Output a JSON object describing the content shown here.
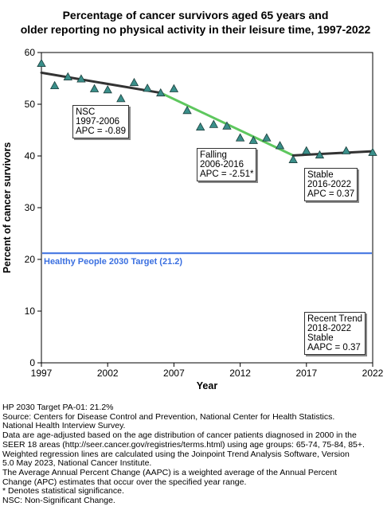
{
  "chart_data": {
    "type": "scatter",
    "title_line1": "Percentage of cancer survivors aged 65 years and",
    "title_line2": "older reporting no physical activity in their leisure time, 1997-2022",
    "xlabel": "Year",
    "ylabel": "Percent of cancer survivors",
    "xlim": [
      1997,
      2022
    ],
    "ylim": [
      0,
      60
    ],
    "x_ticks": [
      1997,
      2002,
      2007,
      2012,
      2017,
      2022
    ],
    "y_ticks": [
      0,
      10,
      20,
      30,
      40,
      50,
      60
    ],
    "grid": false,
    "points": {
      "x": [
        1997,
        1998,
        1999,
        2000,
        2001,
        2002,
        2003,
        2004,
        2005,
        2006,
        2007,
        2008,
        2009,
        2010,
        2011,
        2012,
        2013,
        2014,
        2015,
        2016,
        2017,
        2018,
        2020,
        2022
      ],
      "y": [
        57.9,
        53.6,
        55.3,
        54.9,
        53.0,
        52.8,
        51.1,
        54.2,
        53.1,
        52.2,
        53.0,
        48.8,
        45.6,
        46.1,
        45.8,
        43.5,
        43.0,
        43.5,
        42.0,
        39.3,
        41.0,
        40.2,
        41.0,
        40.7
      ]
    },
    "trend_segments": [
      {
        "x": [
          1997,
          2006
        ],
        "y": [
          56.1,
          52.2
        ],
        "color": "#333333"
      },
      {
        "x": [
          2006,
          2016
        ],
        "y": [
          52.2,
          40.1
        ],
        "color": "#5ec75e"
      },
      {
        "x": [
          2016,
          2022
        ],
        "y": [
          40.1,
          40.9
        ],
        "color": "#333333"
      }
    ],
    "target": {
      "y": 21.2,
      "label": "Healthy People 2030 Target (21.2)",
      "color": "#3a6fe0"
    },
    "marker_color": "#3a8f8a",
    "annotations": [
      {
        "id": "nsc",
        "lines": [
          "NSC",
          "1997-2006",
          "APC = -0.89"
        ]
      },
      {
        "id": "falling",
        "lines": [
          "Falling",
          "2006-2016",
          "APC = -2.51*"
        ]
      },
      {
        "id": "stable",
        "lines": [
          "Stable",
          "2016-2022",
          "APC =  0.37"
        ]
      },
      {
        "id": "recent",
        "lines": [
          "Recent Trend",
          "2018-2022",
          "Stable",
          "AAPC =  0.37"
        ]
      }
    ]
  },
  "notes": [
    "HP 2030 Target PA-01: 21.2%",
    "Source: Centers for Disease Control and Prevention, National Center for Health Statistics.",
    "National Health Interview Survey.",
    "Data are age-adjusted based on the age distribution of cancer patients diagnosed in 2000 in the",
    "SEER 18 areas (http://seer.cancer.gov/registries/terms.html) using age groups: 65-74, 75-84, 85+.",
    "Weighted regression lines are calculated using the Joinpoint Trend Analysis Software, Version",
    "5.0 May 2023, National Cancer Institute.",
    "The Average Annual Percent Change (AAPC) is a weighted average of the Annual Percent",
    "Change (APC) estimates that occur over the specified year range.",
    "* Denotes statistical significance.",
    "NSC: Non-Significant Change."
  ]
}
